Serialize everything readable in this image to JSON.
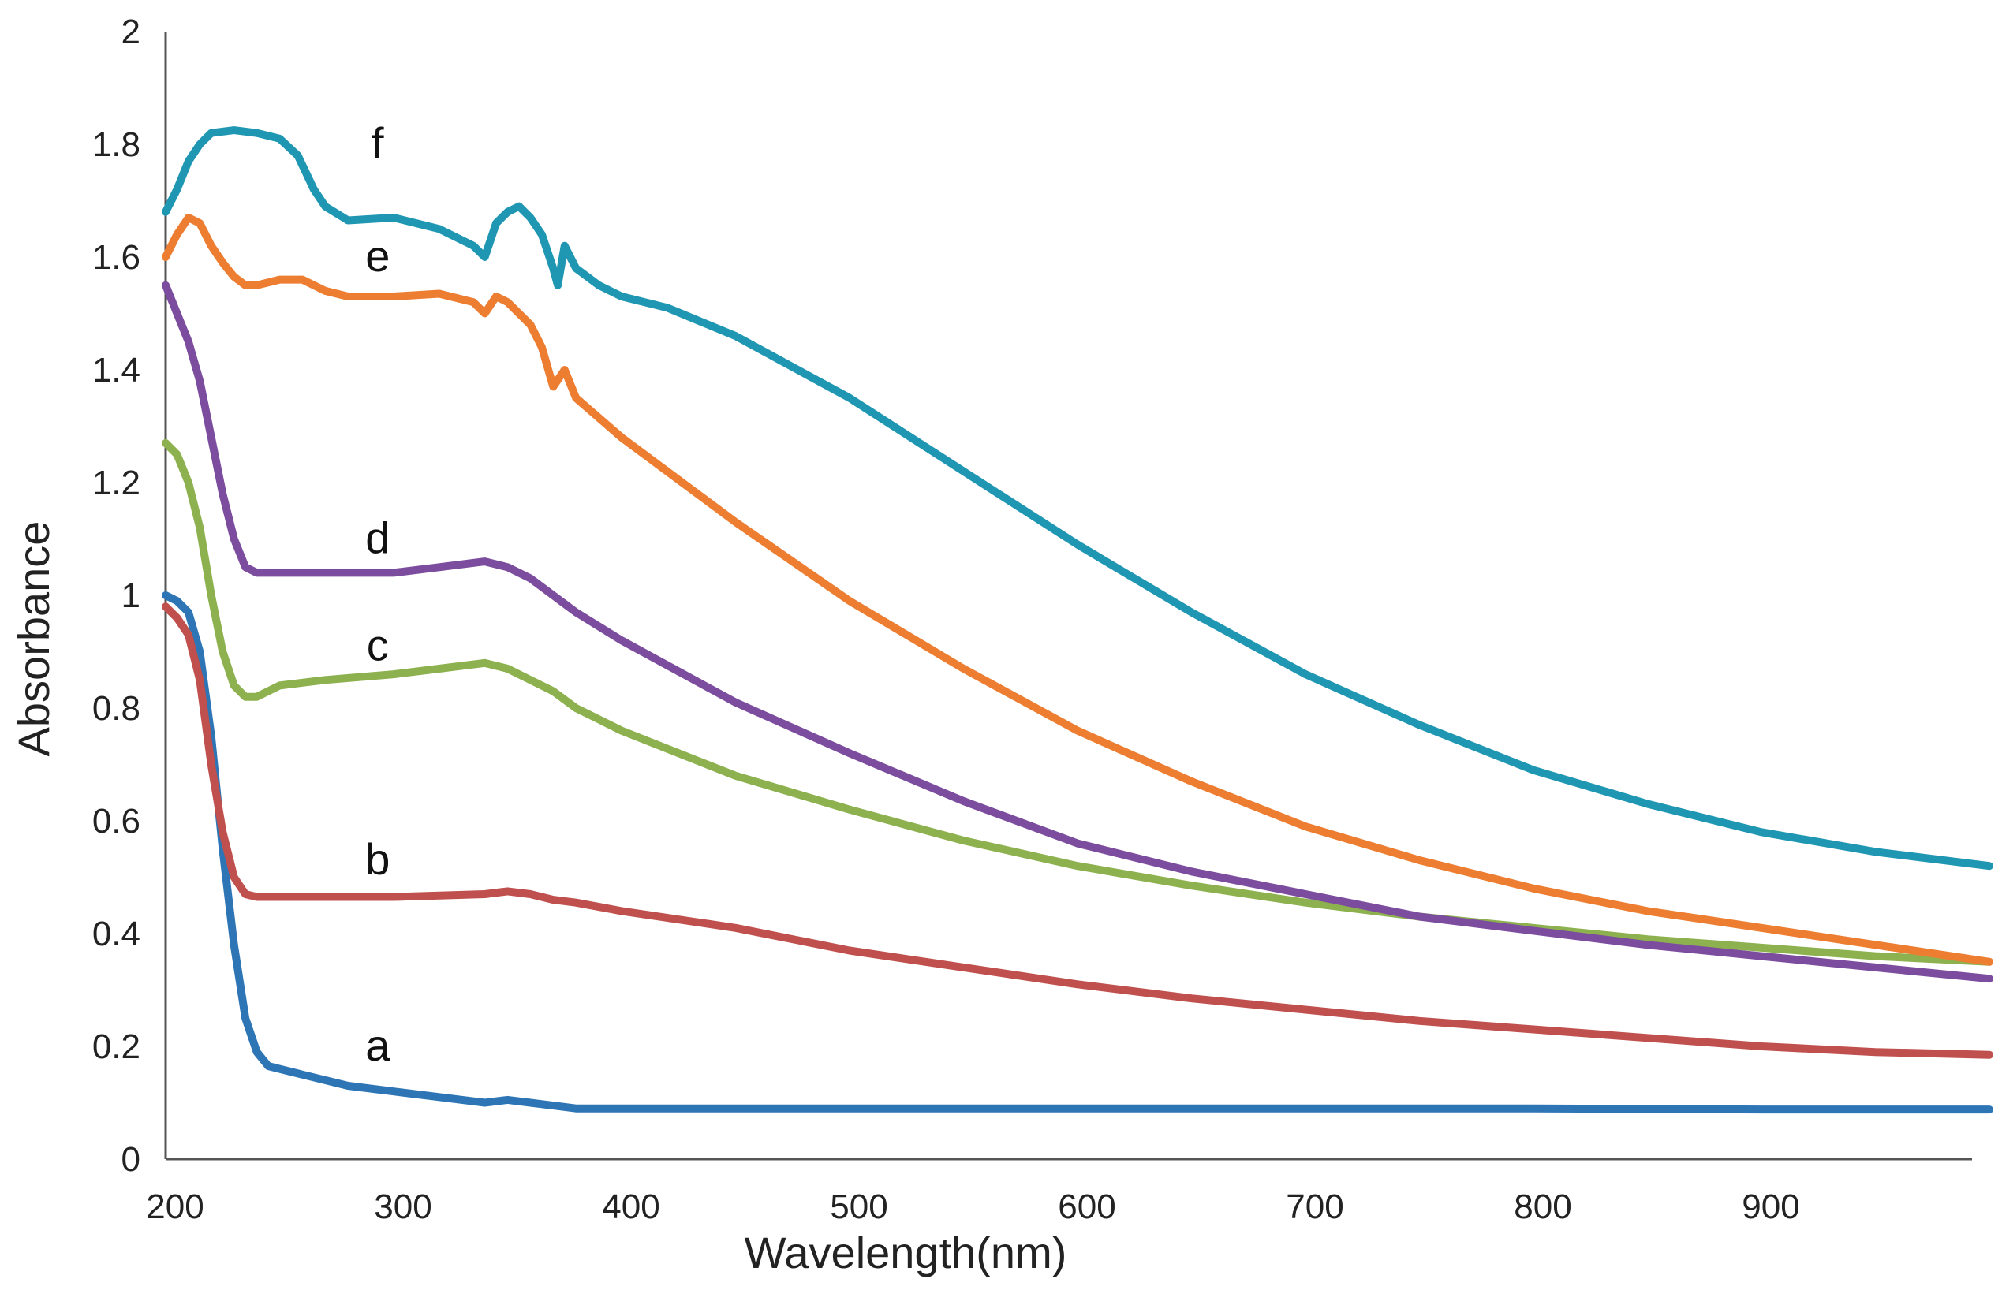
{
  "chart_data": {
    "type": "line",
    "title": "",
    "xlabel": "Wavelength(nm)",
    "ylabel": "Absorbance",
    "xlim": [
      200,
      1000
    ],
    "ylim": [
      0,
      2
    ],
    "x_ticks": [
      200,
      300,
      400,
      500,
      600,
      700,
      800,
      900
    ],
    "x_tick_labels": [
      "200",
      "300",
      "400",
      "500",
      "600",
      "700",
      "800",
      "900"
    ],
    "y_ticks": [
      0,
      0.2,
      0.4,
      0.6,
      0.8,
      1,
      1.2,
      1.4,
      1.6,
      1.8,
      2
    ],
    "y_tick_labels": [
      "0",
      "0.2",
      "0.4",
      "0.6",
      "0.8",
      "1",
      "1.2",
      "1.4",
      "1.6",
      "1.8",
      "2"
    ],
    "grid": false,
    "legend": "none",
    "series": [
      {
        "name": "a",
        "color": "#2e75b6",
        "label_at": [
          293,
          0.2
        ],
        "points": [
          [
            200,
            1.0
          ],
          [
            205,
            0.99
          ],
          [
            210,
            0.97
          ],
          [
            215,
            0.9
          ],
          [
            220,
            0.75
          ],
          [
            225,
            0.55
          ],
          [
            230,
            0.38
          ],
          [
            235,
            0.25
          ],
          [
            240,
            0.19
          ],
          [
            245,
            0.165
          ],
          [
            250,
            0.16
          ],
          [
            260,
            0.15
          ],
          [
            280,
            0.13
          ],
          [
            300,
            0.12
          ],
          [
            320,
            0.11
          ],
          [
            340,
            0.1
          ],
          [
            350,
            0.105
          ],
          [
            360,
            0.1
          ],
          [
            370,
            0.095
          ],
          [
            380,
            0.09
          ],
          [
            400,
            0.09
          ],
          [
            500,
            0.09
          ],
          [
            600,
            0.09
          ],
          [
            700,
            0.09
          ],
          [
            800,
            0.09
          ],
          [
            900,
            0.088
          ],
          [
            1000,
            0.088
          ]
        ]
      },
      {
        "name": "b",
        "color": "#c0504d",
        "label_at": [
          293,
          0.53
        ],
        "points": [
          [
            200,
            0.98
          ],
          [
            205,
            0.96
          ],
          [
            210,
            0.93
          ],
          [
            215,
            0.85
          ],
          [
            220,
            0.7
          ],
          [
            225,
            0.58
          ],
          [
            230,
            0.5
          ],
          [
            235,
            0.47
          ],
          [
            240,
            0.465
          ],
          [
            260,
            0.465
          ],
          [
            300,
            0.465
          ],
          [
            340,
            0.47
          ],
          [
            350,
            0.475
          ],
          [
            360,
            0.47
          ],
          [
            370,
            0.46
          ],
          [
            380,
            0.455
          ],
          [
            400,
            0.44
          ],
          [
            450,
            0.41
          ],
          [
            500,
            0.37
          ],
          [
            550,
            0.34
          ],
          [
            600,
            0.31
          ],
          [
            650,
            0.285
          ],
          [
            700,
            0.265
          ],
          [
            750,
            0.245
          ],
          [
            800,
            0.23
          ],
          [
            850,
            0.215
          ],
          [
            900,
            0.2
          ],
          [
            950,
            0.19
          ],
          [
            1000,
            0.185
          ]
        ]
      },
      {
        "name": "c",
        "color": "#8db14f",
        "label_at": [
          293,
          0.91
        ],
        "points": [
          [
            200,
            1.27
          ],
          [
            205,
            1.25
          ],
          [
            210,
            1.2
          ],
          [
            215,
            1.12
          ],
          [
            220,
            1.0
          ],
          [
            225,
            0.9
          ],
          [
            230,
            0.84
          ],
          [
            235,
            0.82
          ],
          [
            240,
            0.82
          ],
          [
            250,
            0.84
          ],
          [
            270,
            0.85
          ],
          [
            300,
            0.86
          ],
          [
            320,
            0.87
          ],
          [
            340,
            0.88
          ],
          [
            350,
            0.87
          ],
          [
            360,
            0.85
          ],
          [
            370,
            0.83
          ],
          [
            380,
            0.8
          ],
          [
            400,
            0.76
          ],
          [
            450,
            0.68
          ],
          [
            500,
            0.62
          ],
          [
            550,
            0.565
          ],
          [
            600,
            0.52
          ],
          [
            650,
            0.485
          ],
          [
            700,
            0.455
          ],
          [
            750,
            0.43
          ],
          [
            800,
            0.41
          ],
          [
            850,
            0.39
          ],
          [
            900,
            0.375
          ],
          [
            950,
            0.36
          ],
          [
            1000,
            0.35
          ]
        ]
      },
      {
        "name": "d",
        "color": "#7c4d9e",
        "label_at": [
          293,
          1.1
        ],
        "points": [
          [
            200,
            1.55
          ],
          [
            205,
            1.5
          ],
          [
            210,
            1.45
          ],
          [
            215,
            1.38
          ],
          [
            220,
            1.28
          ],
          [
            225,
            1.18
          ],
          [
            230,
            1.1
          ],
          [
            235,
            1.05
          ],
          [
            240,
            1.04
          ],
          [
            260,
            1.04
          ],
          [
            300,
            1.04
          ],
          [
            320,
            1.05
          ],
          [
            340,
            1.06
          ],
          [
            350,
            1.05
          ],
          [
            360,
            1.03
          ],
          [
            370,
            1.0
          ],
          [
            380,
            0.97
          ],
          [
            400,
            0.92
          ],
          [
            450,
            0.81
          ],
          [
            500,
            0.72
          ],
          [
            550,
            0.635
          ],
          [
            600,
            0.56
          ],
          [
            650,
            0.51
          ],
          [
            700,
            0.47
          ],
          [
            750,
            0.43
          ],
          [
            800,
            0.405
          ],
          [
            850,
            0.38
          ],
          [
            900,
            0.36
          ],
          [
            950,
            0.34
          ],
          [
            1000,
            0.32
          ]
        ]
      },
      {
        "name": "e",
        "color": "#ed7d31",
        "label_at": [
          293,
          1.6
        ],
        "points": [
          [
            200,
            1.6
          ],
          [
            205,
            1.64
          ],
          [
            210,
            1.67
          ],
          [
            215,
            1.66
          ],
          [
            220,
            1.62
          ],
          [
            225,
            1.59
          ],
          [
            230,
            1.565
          ],
          [
            235,
            1.55
          ],
          [
            240,
            1.55
          ],
          [
            250,
            1.56
          ],
          [
            260,
            1.56
          ],
          [
            270,
            1.54
          ],
          [
            280,
            1.53
          ],
          [
            300,
            1.53
          ],
          [
            320,
            1.535
          ],
          [
            335,
            1.52
          ],
          [
            340,
            1.5
          ],
          [
            345,
            1.53
          ],
          [
            350,
            1.52
          ],
          [
            360,
            1.48
          ],
          [
            365,
            1.44
          ],
          [
            370,
            1.37
          ],
          [
            375,
            1.4
          ],
          [
            380,
            1.35
          ],
          [
            400,
            1.28
          ],
          [
            450,
            1.13
          ],
          [
            500,
            0.99
          ],
          [
            550,
            0.87
          ],
          [
            600,
            0.76
          ],
          [
            650,
            0.67
          ],
          [
            700,
            0.59
          ],
          [
            750,
            0.53
          ],
          [
            800,
            0.48
          ],
          [
            850,
            0.44
          ],
          [
            900,
            0.41
          ],
          [
            950,
            0.38
          ],
          [
            1000,
            0.35
          ]
        ]
      },
      {
        "name": "f",
        "color": "#1f97b2",
        "label_at": [
          293,
          1.8
        ],
        "points": [
          [
            200,
            1.68
          ],
          [
            205,
            1.72
          ],
          [
            210,
            1.77
          ],
          [
            215,
            1.8
          ],
          [
            220,
            1.82
          ],
          [
            230,
            1.825
          ],
          [
            240,
            1.82
          ],
          [
            250,
            1.81
          ],
          [
            258,
            1.78
          ],
          [
            265,
            1.72
          ],
          [
            270,
            1.69
          ],
          [
            280,
            1.665
          ],
          [
            300,
            1.67
          ],
          [
            320,
            1.65
          ],
          [
            335,
            1.62
          ],
          [
            340,
            1.6
          ],
          [
            345,
            1.66
          ],
          [
            350,
            1.68
          ],
          [
            355,
            1.69
          ],
          [
            360,
            1.67
          ],
          [
            365,
            1.64
          ],
          [
            370,
            1.58
          ],
          [
            372,
            1.55
          ],
          [
            375,
            1.62
          ],
          [
            380,
            1.58
          ],
          [
            390,
            1.55
          ],
          [
            400,
            1.53
          ],
          [
            420,
            1.51
          ],
          [
            450,
            1.46
          ],
          [
            500,
            1.35
          ],
          [
            550,
            1.22
          ],
          [
            600,
            1.09
          ],
          [
            650,
            0.97
          ],
          [
            700,
            0.86
          ],
          [
            750,
            0.77
          ],
          [
            800,
            0.69
          ],
          [
            850,
            0.63
          ],
          [
            900,
            0.58
          ],
          [
            950,
            0.545
          ],
          [
            1000,
            0.52
          ]
        ]
      }
    ]
  }
}
